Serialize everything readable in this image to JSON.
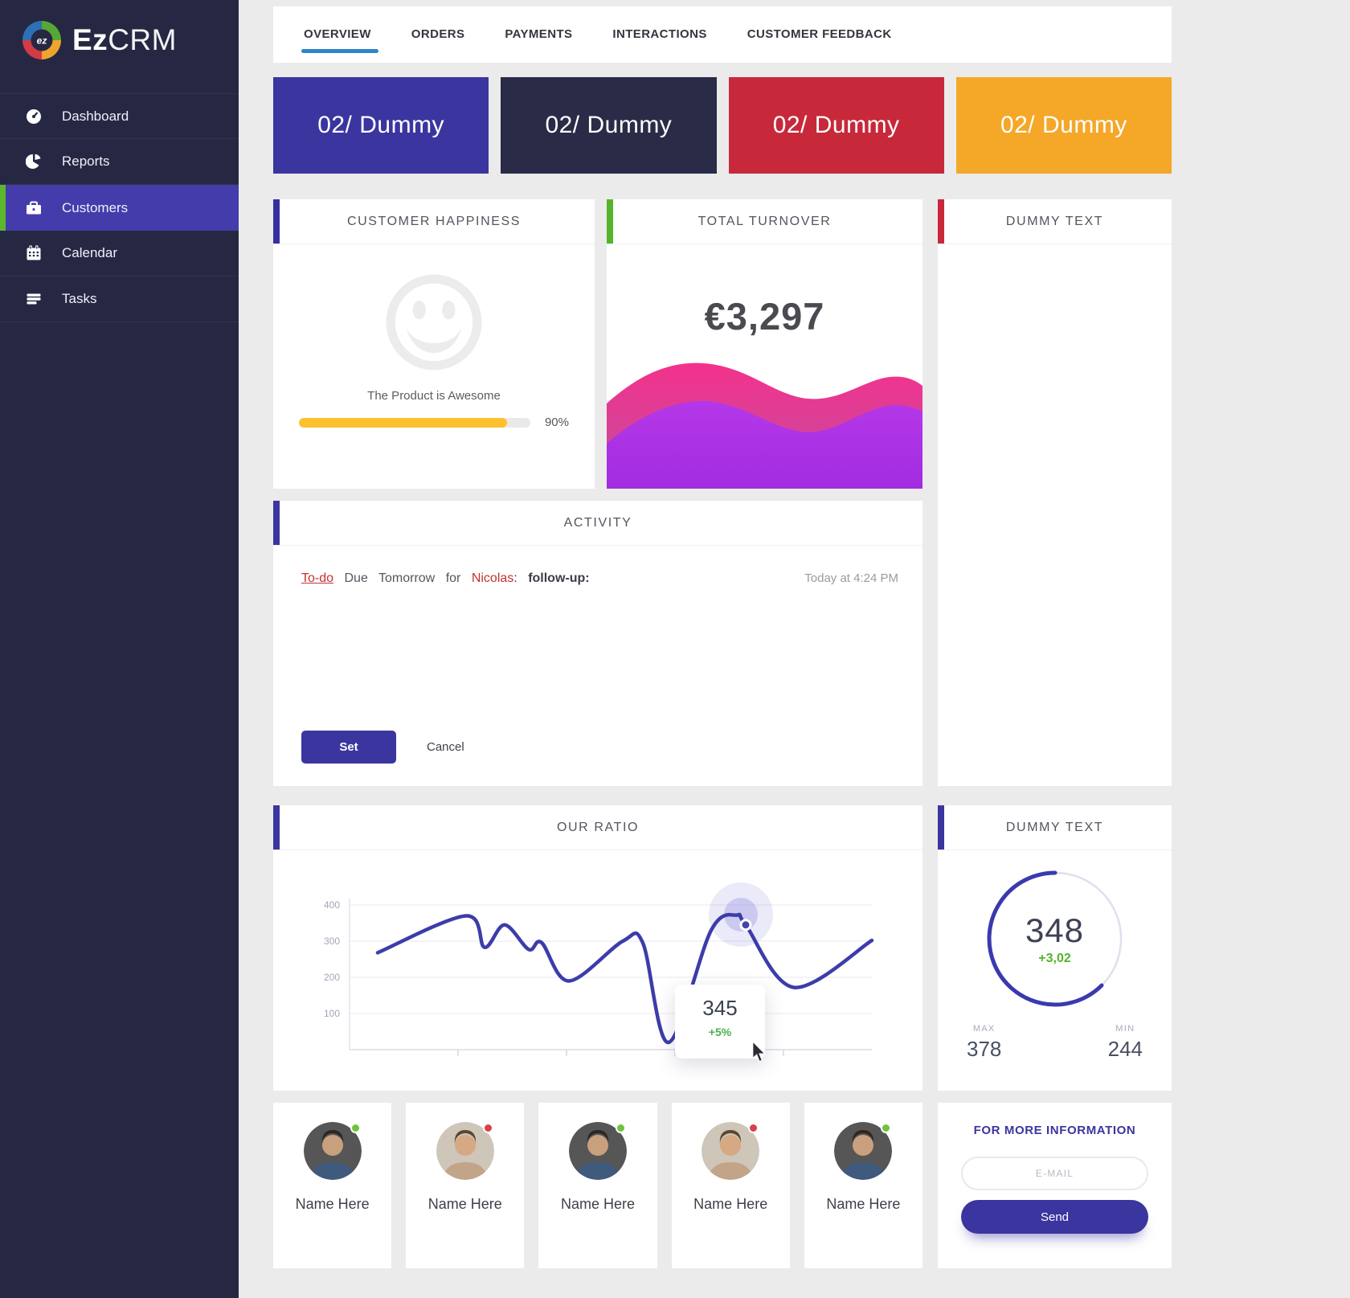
{
  "brand": {
    "bold": "Ez",
    "light": "CRM"
  },
  "sidebar": {
    "items": [
      {
        "label": "Dashboard",
        "icon": "dashboard-icon",
        "active": false
      },
      {
        "label": "Reports",
        "icon": "reports-icon",
        "active": false
      },
      {
        "label": "Customers",
        "icon": "customers-icon",
        "active": true
      },
      {
        "label": "Calendar",
        "icon": "calendar-icon",
        "active": false
      },
      {
        "label": "Tasks",
        "icon": "tasks-icon",
        "active": false
      }
    ]
  },
  "tabs": {
    "items": [
      {
        "label": "OVERVIEW",
        "active": true
      },
      {
        "label": "ORDERS",
        "active": false
      },
      {
        "label": "PAYMENTS",
        "active": false
      },
      {
        "label": "INTERACTIONS",
        "active": false
      },
      {
        "label": "CUSTOMER FEEDBACK",
        "active": false
      }
    ],
    "active_underline_color": "#2e86c8"
  },
  "stat_cards": [
    {
      "label": "02/ Dummy",
      "color": "#3b35a0"
    },
    {
      "label": "02/ Dummy",
      "color": "#2a2b47"
    },
    {
      "label": "02/ Dummy",
      "color": "#c7293a"
    },
    {
      "label": "02/ Dummy",
      "color": "#f5a728"
    }
  ],
  "happiness": {
    "title": "CUSTOMER HAPPINESS",
    "accent": "#35309e",
    "caption": "The Product is Awesome",
    "percent": 90,
    "percent_label": "90%",
    "bar_color": "#fcc12c"
  },
  "turnover": {
    "title": "TOTAL TURNOVER",
    "accent": "#52b52c",
    "amount": "€3,297"
  },
  "dummy_panel": {
    "title": "DUMMY TEXT",
    "accent": "#c7293a"
  },
  "activity": {
    "title": "ACTIVITY",
    "accent": "#3b35a0",
    "entry": {
      "todo": "To-do",
      "due": "Due",
      "when": "Tomorrow",
      "for_word": "for",
      "person": "Nicolas",
      "separator": ":",
      "task": "follow-up:",
      "timestamp": "Today at 4:24 PM"
    },
    "set_label": "Set",
    "cancel_label": "Cancel"
  },
  "ratio": {
    "title": "OUR RATIO",
    "accent": "#3b35a0"
  },
  "gauge": {
    "title": "DUMMY TEXT",
    "accent": "#3b35a0",
    "value": "348",
    "delta": "+3,02",
    "max_label": "MAX",
    "max_value": "378",
    "min_label": "MIN",
    "min_value": "244"
  },
  "contacts": [
    {
      "name": "Name Here",
      "status": "online",
      "photo": "dark"
    },
    {
      "name": "Name Here",
      "status": "busy",
      "photo": "light"
    },
    {
      "name": "Name Here",
      "status": "online",
      "photo": "dark"
    },
    {
      "name": "Name Here",
      "status": "busy",
      "photo": "light"
    },
    {
      "name": "Name Here",
      "status": "online",
      "photo": "dark"
    }
  ],
  "info": {
    "title": "FOR MORE INFORMATION",
    "email_placeholder": "E-MAIL",
    "send_label": "Send"
  },
  "chart_data": [
    {
      "name": "our_ratio",
      "type": "line",
      "title": "OUR RATIO",
      "ylabel": "",
      "xlabel": "",
      "ylim": [
        0,
        430
      ],
      "yticks": [
        400,
        300,
        200,
        100
      ],
      "grid": true,
      "line_color": "#3c3caa",
      "points": [
        [
          130,
          268
        ],
        [
          240,
          370
        ],
        [
          263,
          283
        ],
        [
          288,
          345
        ],
        [
          318,
          277
        ],
        [
          334,
          296
        ],
        [
          368,
          190
        ],
        [
          435,
          300
        ],
        [
          460,
          295
        ],
        [
          492,
          20
        ],
        [
          545,
          330
        ],
        [
          577,
          372
        ],
        [
          588,
          345
        ],
        [
          648,
          172
        ],
        [
          745,
          302
        ]
      ],
      "marker": {
        "x": 588,
        "value": 345,
        "label": "345",
        "delta": "+5%"
      }
    },
    {
      "name": "total_turnover",
      "type": "area",
      "title": "TOTAL TURNOVER",
      "value_label": "€3,297",
      "series": [
        {
          "name": "back-wave",
          "color": "#ef3b8e"
        },
        {
          "name": "front-wave",
          "color": "#a934e2"
        }
      ]
    },
    {
      "name": "dummy_gauge",
      "type": "gauge",
      "value": 348,
      "delta": "+3,02",
      "max": 378,
      "min": 244,
      "arc_color": "#3a3aae"
    },
    {
      "name": "customer_happiness",
      "type": "progress",
      "label": "The Product is Awesome",
      "percent": 90,
      "color": "#fcc12c"
    }
  ]
}
